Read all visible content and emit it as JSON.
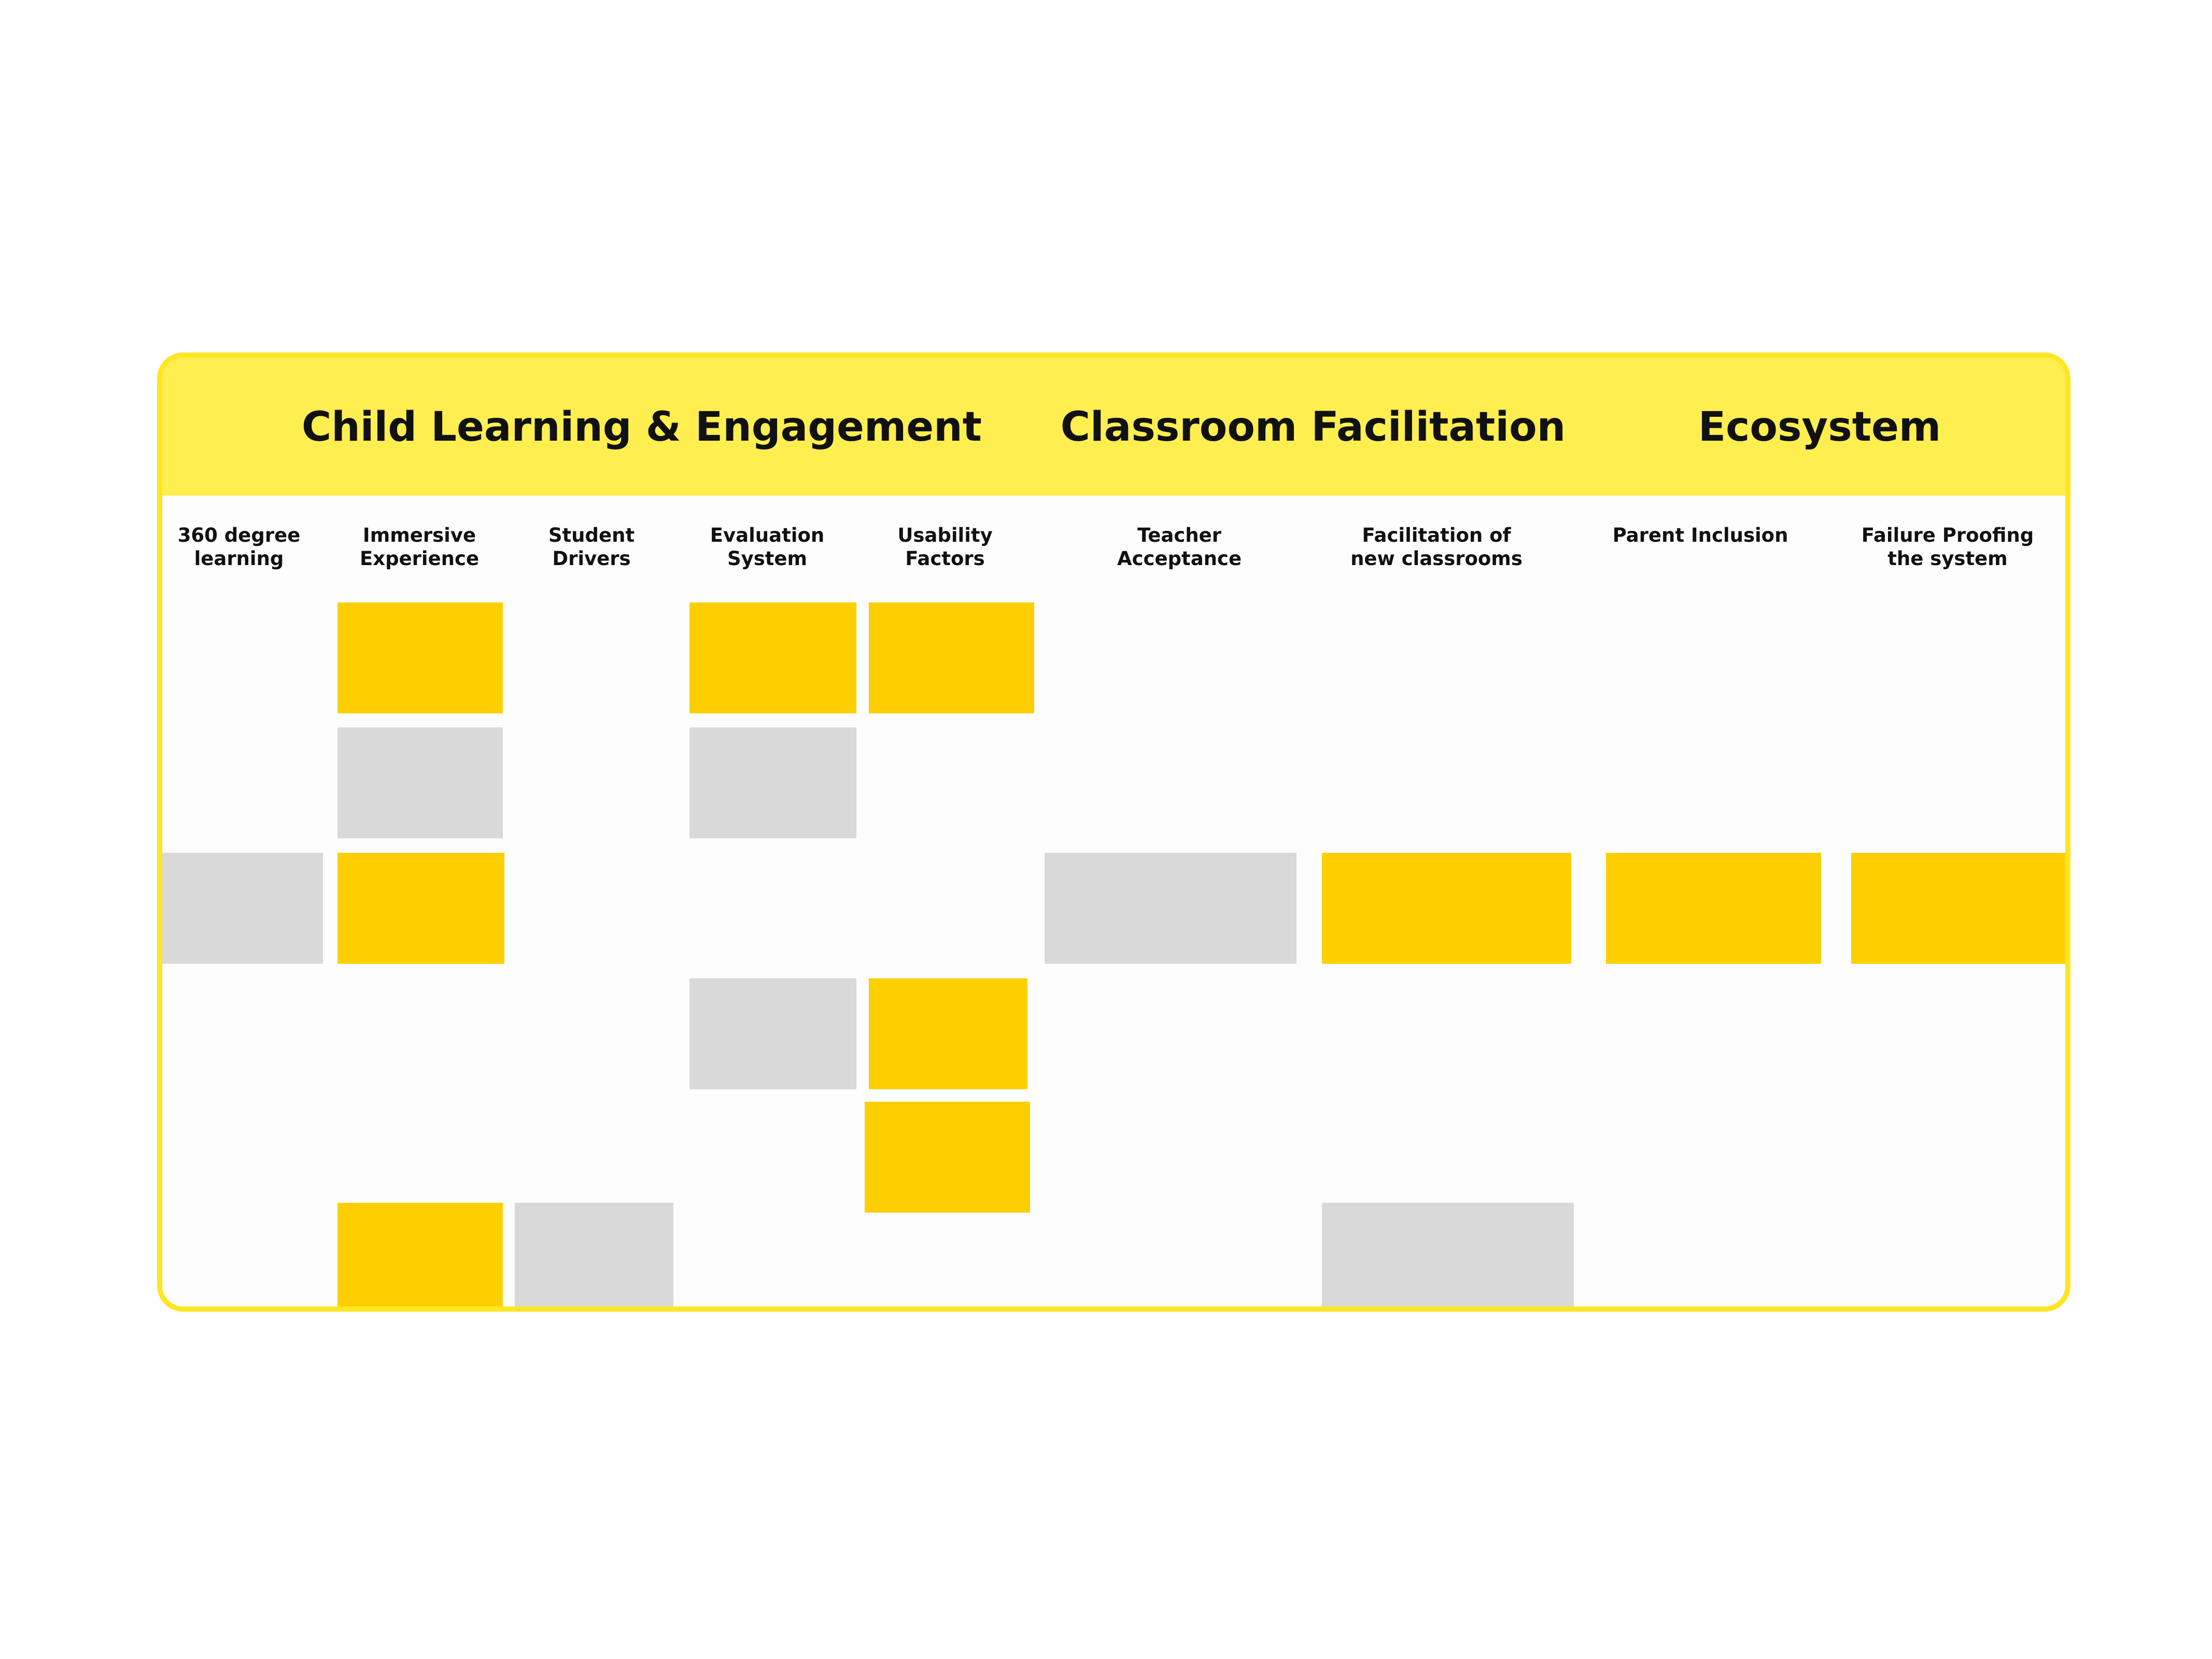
{
  "board": {
    "categories": [
      {
        "label": "Child Learning & Engagement"
      },
      {
        "label": "Classroom Facilitation"
      },
      {
        "label": "Ecosystem"
      }
    ],
    "columns": [
      {
        "label": "360 degree\nlearning"
      },
      {
        "label": "Immersive\nExperience"
      },
      {
        "label": "Student\nDrivers"
      },
      {
        "label": "Evaluation\nSystem"
      },
      {
        "label": "Usability\nFactors"
      },
      {
        "label": "Teacher\nAcceptance"
      },
      {
        "label": "Facilitation of\nnew classrooms"
      },
      {
        "label": "Parent Inclusion"
      },
      {
        "label": "Failure Proofing\nthe system"
      }
    ]
  },
  "cards": [
    {
      "column": "Immersive Experience",
      "row": 1,
      "color": "yellow"
    },
    {
      "column": "Evaluation System",
      "row": 1,
      "color": "yellow"
    },
    {
      "column": "Usability Factors",
      "row": 1,
      "color": "yellow"
    },
    {
      "column": "Immersive Experience",
      "row": 2,
      "color": "gray"
    },
    {
      "column": "Evaluation System",
      "row": 2,
      "color": "gray"
    },
    {
      "column": "360 degree learning",
      "row": 3,
      "color": "gray"
    },
    {
      "column": "Immersive Experience",
      "row": 3,
      "color": "yellow"
    },
    {
      "column": "Teacher Acceptance",
      "row": 3,
      "color": "gray"
    },
    {
      "column": "Facilitation of new classrooms",
      "row": 3,
      "color": "yellow"
    },
    {
      "column": "Parent Inclusion",
      "row": 3,
      "color": "yellow"
    },
    {
      "column": "Failure Proofing the system",
      "row": 3,
      "color": "yellow"
    },
    {
      "column": "Evaluation System",
      "row": 4,
      "color": "gray"
    },
    {
      "column": "Usability Factors",
      "row": 4,
      "color": "yellow"
    },
    {
      "column": "Usability Factors",
      "row": 5,
      "color": "yellow"
    },
    {
      "column": "Immersive Experience",
      "row": 6,
      "color": "yellow"
    },
    {
      "column": "Student Drivers",
      "row": 6,
      "color": "gray"
    },
    {
      "column": "Facilitation of new classrooms",
      "row": 6,
      "color": "gray"
    }
  ],
  "colors": {
    "accent": "#fee622",
    "header_band": "#ffee4f",
    "card_yellow": "#fdcf00",
    "card_gray": "#d8d9d8"
  }
}
